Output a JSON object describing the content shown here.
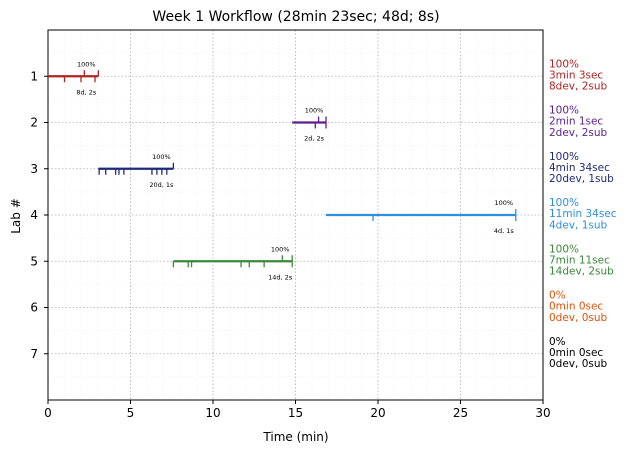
{
  "chart_data": {
    "type": "timeline",
    "title": "Week 1 Workflow (28min 23sec; 48d; 8s)",
    "xlabel": "Time (min)",
    "ylabel": "Lab #",
    "xlim": [
      0,
      30
    ],
    "ylim": [
      8,
      0
    ],
    "x_ticks": [
      0,
      5,
      10,
      15,
      20,
      25,
      30
    ],
    "y_ticks": [
      1,
      2,
      3,
      4,
      5,
      6,
      7
    ],
    "grid": "dotted major and faint minor",
    "labs": [
      {
        "lab": 1,
        "color": "#b22222",
        "start": 0.0,
        "end": 3.05,
        "dev_ticks": [
          1.0,
          2.0,
          2.85
        ],
        "sub_ticks": [
          2.2,
          3.05
        ],
        "completion_label": "100%",
        "count_label": "8d, 2s",
        "summary": [
          "100%",
          "3min 3sec",
          "8dev, 2sub"
        ]
      },
      {
        "lab": 2,
        "color": "#5b1f8f",
        "start": 14.8,
        "end": 16.85,
        "dev_ticks": [
          16.2,
          16.85
        ],
        "sub_ticks": [
          16.4,
          16.85
        ],
        "completion_label": "100%",
        "count_label": "2d, 2s",
        "summary": [
          "100%",
          "2min 1sec",
          "2dev, 2sub"
        ]
      },
      {
        "lab": 3,
        "color": "#1f2a7a",
        "start": 3.05,
        "end": 7.6,
        "dev_ticks": [
          3.1,
          3.5,
          4.1,
          4.3,
          4.6,
          6.3,
          6.6,
          6.9,
          7.2
        ],
        "sub_ticks": [
          7.6
        ],
        "completion_label": "100%",
        "count_label": "20d, 1s",
        "summary": [
          "100%",
          "4min 34sec",
          "20dev, 1sub"
        ]
      },
      {
        "lab": 4,
        "color": "#2e8fe0",
        "start": 16.85,
        "end": 28.35,
        "dev_ticks": [
          19.7,
          28.35
        ],
        "sub_ticks": [
          28.35
        ],
        "completion_label": "100%",
        "count_label": "4d, 1s",
        "summary": [
          "100%",
          "11min 34sec",
          "4dev, 1sub"
        ]
      },
      {
        "lab": 5,
        "color": "#3a8a3a",
        "start": 7.6,
        "end": 14.8,
        "dev_ticks": [
          7.6,
          8.5,
          8.7,
          11.7,
          12.2,
          13.1,
          14.8
        ],
        "sub_ticks": [
          14.2,
          14.8
        ],
        "completion_label": "100%",
        "count_label": "14d, 2s",
        "summary": [
          "100%",
          "7min 11sec",
          "14dev, 2sub"
        ]
      },
      {
        "lab": 6,
        "color": "#e0520a",
        "summary": [
          "0%",
          "0min 0sec",
          "0dev, 0sub"
        ]
      },
      {
        "lab": 7,
        "color": "#000000",
        "summary": [
          "0%",
          "0min 0sec",
          "0dev, 0sub"
        ]
      }
    ]
  }
}
